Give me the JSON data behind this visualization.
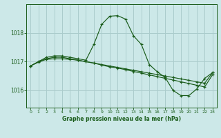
{
  "title": "Graphe pression niveau de la mer (hPa)",
  "bg_color": "#cce8e8",
  "grid_color": "#aacccc",
  "line_color": "#1a5c1a",
  "xlim": [
    -0.5,
    23.5
  ],
  "ylim": [
    1015.4,
    1019.0
  ],
  "yticks": [
    1016,
    1017,
    1018
  ],
  "xticks": [
    0,
    1,
    2,
    3,
    4,
    5,
    6,
    7,
    8,
    9,
    10,
    11,
    12,
    13,
    14,
    15,
    16,
    17,
    18,
    19,
    20,
    21,
    22,
    23
  ],
  "series": [
    [
      1016.85,
      1017.0,
      1017.15,
      1017.2,
      1017.2,
      1017.15,
      1017.1,
      1017.05,
      1017.6,
      1018.3,
      1018.58,
      1018.6,
      1018.48,
      1017.9,
      1017.6,
      1016.9,
      1016.65,
      1016.45,
      1016.0,
      1015.82,
      1015.82,
      1016.05,
      1016.42,
      1016.62
    ],
    [
      1016.85,
      1017.0,
      1017.1,
      1017.15,
      1017.15,
      1017.1,
      1017.05,
      1017.0,
      1016.95,
      1016.9,
      1016.85,
      1016.8,
      1016.75,
      1016.7,
      1016.65,
      1016.6,
      1016.55,
      1016.5,
      1016.45,
      1016.4,
      1016.35,
      1016.3,
      1016.25,
      1016.62
    ],
    [
      1016.85,
      1016.98,
      1017.08,
      1017.1,
      1017.1,
      1017.08,
      1017.05,
      1017.0,
      1016.95,
      1016.88,
      1016.82,
      1016.78,
      1016.72,
      1016.66,
      1016.6,
      1016.54,
      1016.48,
      1016.42,
      1016.36,
      1016.3,
      1016.24,
      1016.18,
      1016.12,
      1016.55
    ]
  ]
}
